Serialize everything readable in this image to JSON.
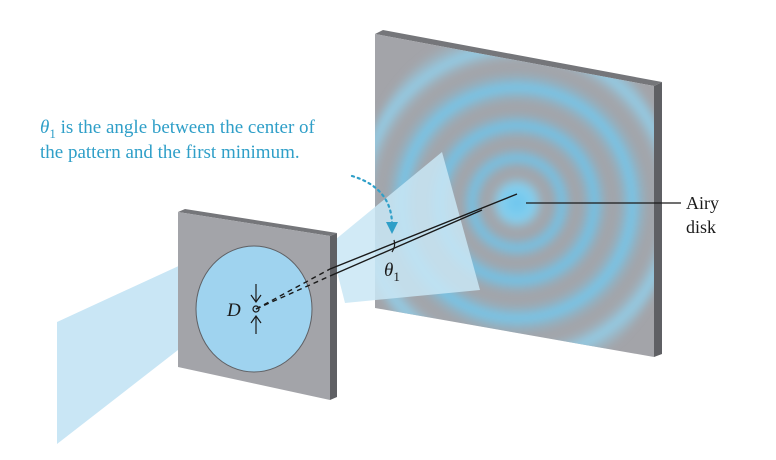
{
  "annotation": {
    "symbol": "θ",
    "subscript": "1",
    "line1_rest": " is the angle between the center of",
    "line2": "the pattern and the first minimum."
  },
  "labels": {
    "aperture_diameter": "D",
    "angle_symbol": "θ",
    "angle_subscript": "1",
    "airy_line1": "Airy",
    "airy_line2": "disk"
  },
  "colors": {
    "light": "#c9e6f5",
    "ring": "#6cc6ee",
    "annotation": "#2f9fc8",
    "screen": "#a3a4a9",
    "screen_edge": "#5f6064",
    "aperture_fill": "#9fd3ef"
  }
}
